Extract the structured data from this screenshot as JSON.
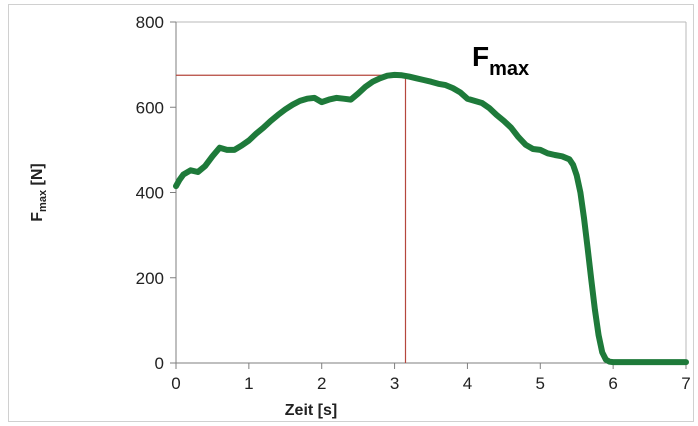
{
  "chart_data": {
    "type": "line",
    "xlabel": "Zeit [s]",
    "ylabel_main": "F",
    "ylabel_sub": "max",
    "ylabel_unit": " [N]",
    "xlim": [
      0,
      7
    ],
    "ylim": [
      0,
      800
    ],
    "xticks": [
      "0",
      "1",
      "2",
      "3",
      "4",
      "5",
      "6",
      "7"
    ],
    "yticks": [
      "0",
      "200",
      "400",
      "600",
      "800"
    ],
    "grid": false,
    "annotation": {
      "main": "F",
      "sub": "max"
    },
    "peak_marker": {
      "x": 3.15,
      "y": 675
    },
    "series": [
      {
        "color": "#1e7a3a",
        "x": [
          0,
          0.05,
          0.1,
          0.2,
          0.3,
          0.4,
          0.5,
          0.6,
          0.7,
          0.8,
          0.9,
          1.0,
          1.1,
          1.2,
          1.3,
          1.4,
          1.5,
          1.6,
          1.7,
          1.8,
          1.9,
          2.0,
          2.1,
          2.2,
          2.3,
          2.4,
          2.5,
          2.6,
          2.7,
          2.8,
          2.9,
          3.0,
          3.1,
          3.2,
          3.3,
          3.4,
          3.5,
          3.6,
          3.7,
          3.8,
          3.9,
          4.0,
          4.1,
          4.2,
          4.3,
          4.4,
          4.5,
          4.6,
          4.7,
          4.8,
          4.9,
          5.0,
          5.1,
          5.2,
          5.3,
          5.4,
          5.45,
          5.5,
          5.55,
          5.6,
          5.65,
          5.7,
          5.75,
          5.8,
          5.85,
          5.9,
          5.95,
          6.0,
          6.05,
          6.1,
          6.2,
          6.4,
          6.6,
          6.8,
          7.0
        ],
        "y": [
          415,
          430,
          442,
          452,
          448,
          462,
          485,
          505,
          500,
          500,
          510,
          522,
          538,
          552,
          568,
          582,
          595,
          606,
          615,
          620,
          622,
          612,
          618,
          622,
          620,
          618,
          632,
          648,
          660,
          668,
          674,
          676,
          675,
          672,
          668,
          664,
          660,
          655,
          652,
          645,
          635,
          620,
          615,
          610,
          598,
          582,
          568,
          552,
          530,
          512,
          502,
          500,
          492,
          488,
          485,
          478,
          465,
          440,
          400,
          340,
          270,
          195,
          125,
          65,
          25,
          8,
          3,
          2,
          2,
          2,
          2,
          2,
          2,
          2,
          2
        ]
      }
    ]
  }
}
